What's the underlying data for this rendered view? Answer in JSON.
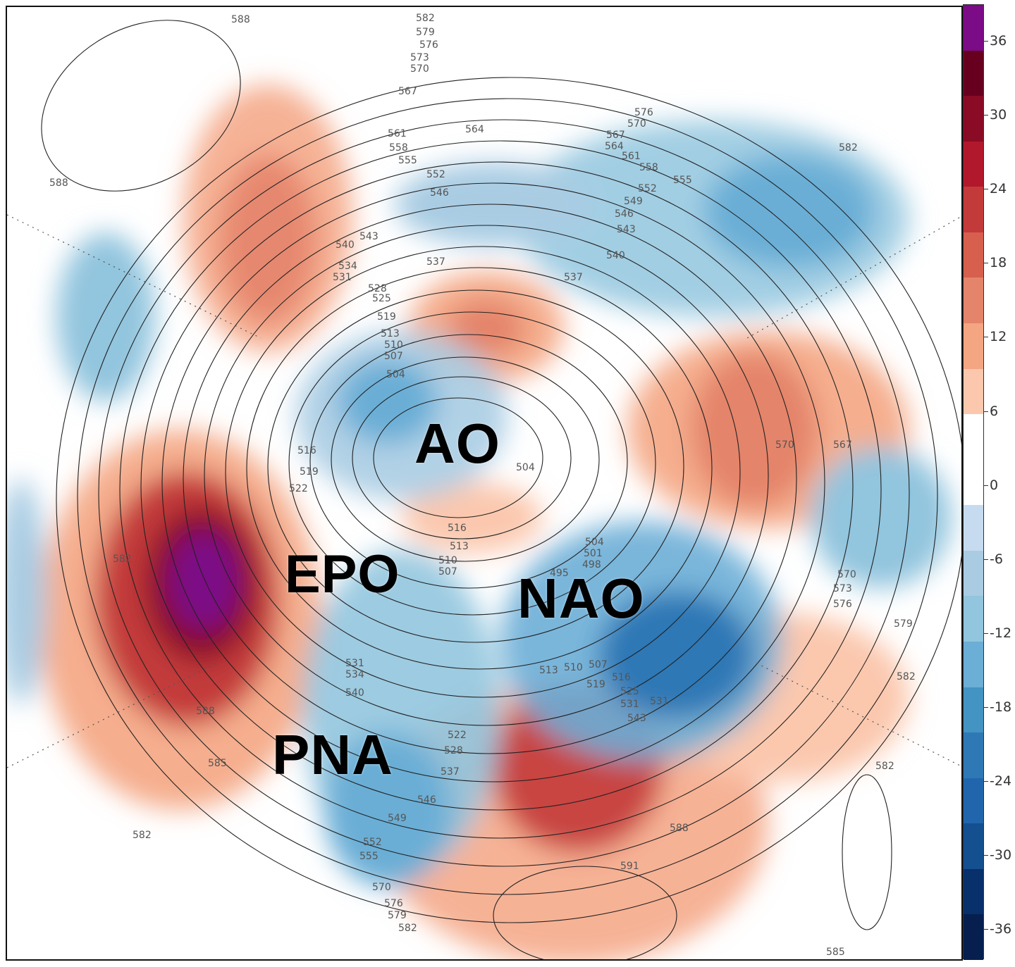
{
  "map": {
    "index_labels": {
      "ao": "AO",
      "epo": "EPO",
      "nao": "NAO",
      "pna": "PNA"
    },
    "contour_labels": [
      "588",
      "582",
      "579",
      "576",
      "573",
      "570",
      "567",
      "564",
      "561",
      "558",
      "555",
      "552",
      "549",
      "546",
      "543",
      "540",
      "537",
      "534",
      "531",
      "528",
      "525",
      "522",
      "519",
      "516",
      "513",
      "510",
      "507",
      "504",
      "501",
      "498",
      "495",
      "591",
      "585"
    ]
  },
  "colorbar": {
    "ticks": [
      "36",
      "30",
      "24",
      "18",
      "12",
      "6",
      "0",
      "-6",
      "-12",
      "-18",
      "-24",
      "-30",
      "-36"
    ],
    "colors": [
      "#7b0b86",
      "#67001f",
      "#8a0b25",
      "#b2182b",
      "#c33a3a",
      "#d6604d",
      "#e4846b",
      "#f4a582",
      "#fbc8ae",
      "#ffffff",
      "#ffffff",
      "#c6dbef",
      "#a9cce3",
      "#92c5de",
      "#6baed6",
      "#4393c3",
      "#2f78b6",
      "#2166ac",
      "#144f8f",
      "#08306b",
      "#061f4f"
    ]
  }
}
